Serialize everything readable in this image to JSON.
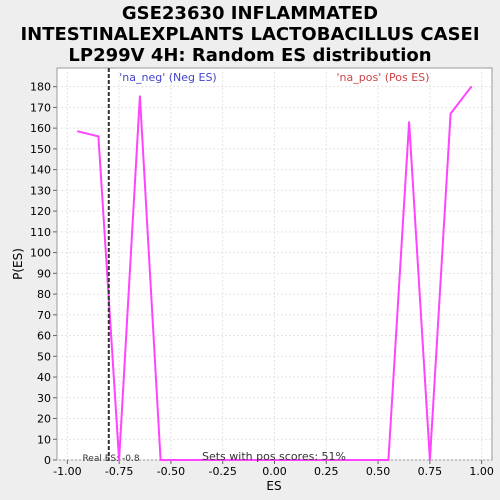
{
  "title_lines": [
    "GSE23630 INFLAMMATED",
    "INTESTINALEXPLANTS LACTOBACILLUS CASEI",
    "LP299V 4H: Random ES distribution"
  ],
  "chart_data": {
    "type": "line",
    "xlabel": "ES",
    "ylabel": "P(ES)",
    "xlim": [
      -1.05,
      1.05
    ],
    "ylim": [
      0,
      189
    ],
    "x_ticks": [
      -1.0,
      -0.75,
      -0.5,
      -0.25,
      0.0,
      0.25,
      0.5,
      0.75,
      1.0
    ],
    "x_tick_labels": [
      "-1.00",
      "-0.75",
      "-0.50",
      "-0.25",
      "0.00",
      "0.25",
      "0.50",
      "0.75",
      "1.00"
    ],
    "y_ticks": [
      0,
      10,
      20,
      30,
      40,
      50,
      60,
      70,
      80,
      90,
      100,
      110,
      120,
      130,
      140,
      150,
      160,
      170,
      180
    ],
    "grid": true,
    "series": [
      {
        "color": "#ff44ff",
        "x": [
          -0.95,
          -0.85,
          -0.75,
          -0.65,
          -0.55,
          -0.45,
          -0.35,
          -0.25,
          -0.15,
          -0.05,
          0.05,
          0.15,
          0.25,
          0.35,
          0.45,
          0.55,
          0.65,
          0.75,
          0.85,
          0.95
        ],
        "y": [
          158.5,
          156,
          0,
          175.5,
          0,
          0,
          0,
          0,
          0,
          0,
          0,
          0,
          0,
          0,
          0,
          0,
          163,
          0,
          167,
          180
        ]
      }
    ],
    "real_es": {
      "x": -0.8,
      "label": "Real ES: -0.8"
    },
    "annotations": {
      "neg_label": "'na_neg' (Neg ES)",
      "pos_label": "'na_pos' (Pos ES)",
      "neg_color": "#4444cc",
      "pos_color": "#cc4444",
      "bottom_text": "Sets with pos scores: 51%"
    }
  }
}
